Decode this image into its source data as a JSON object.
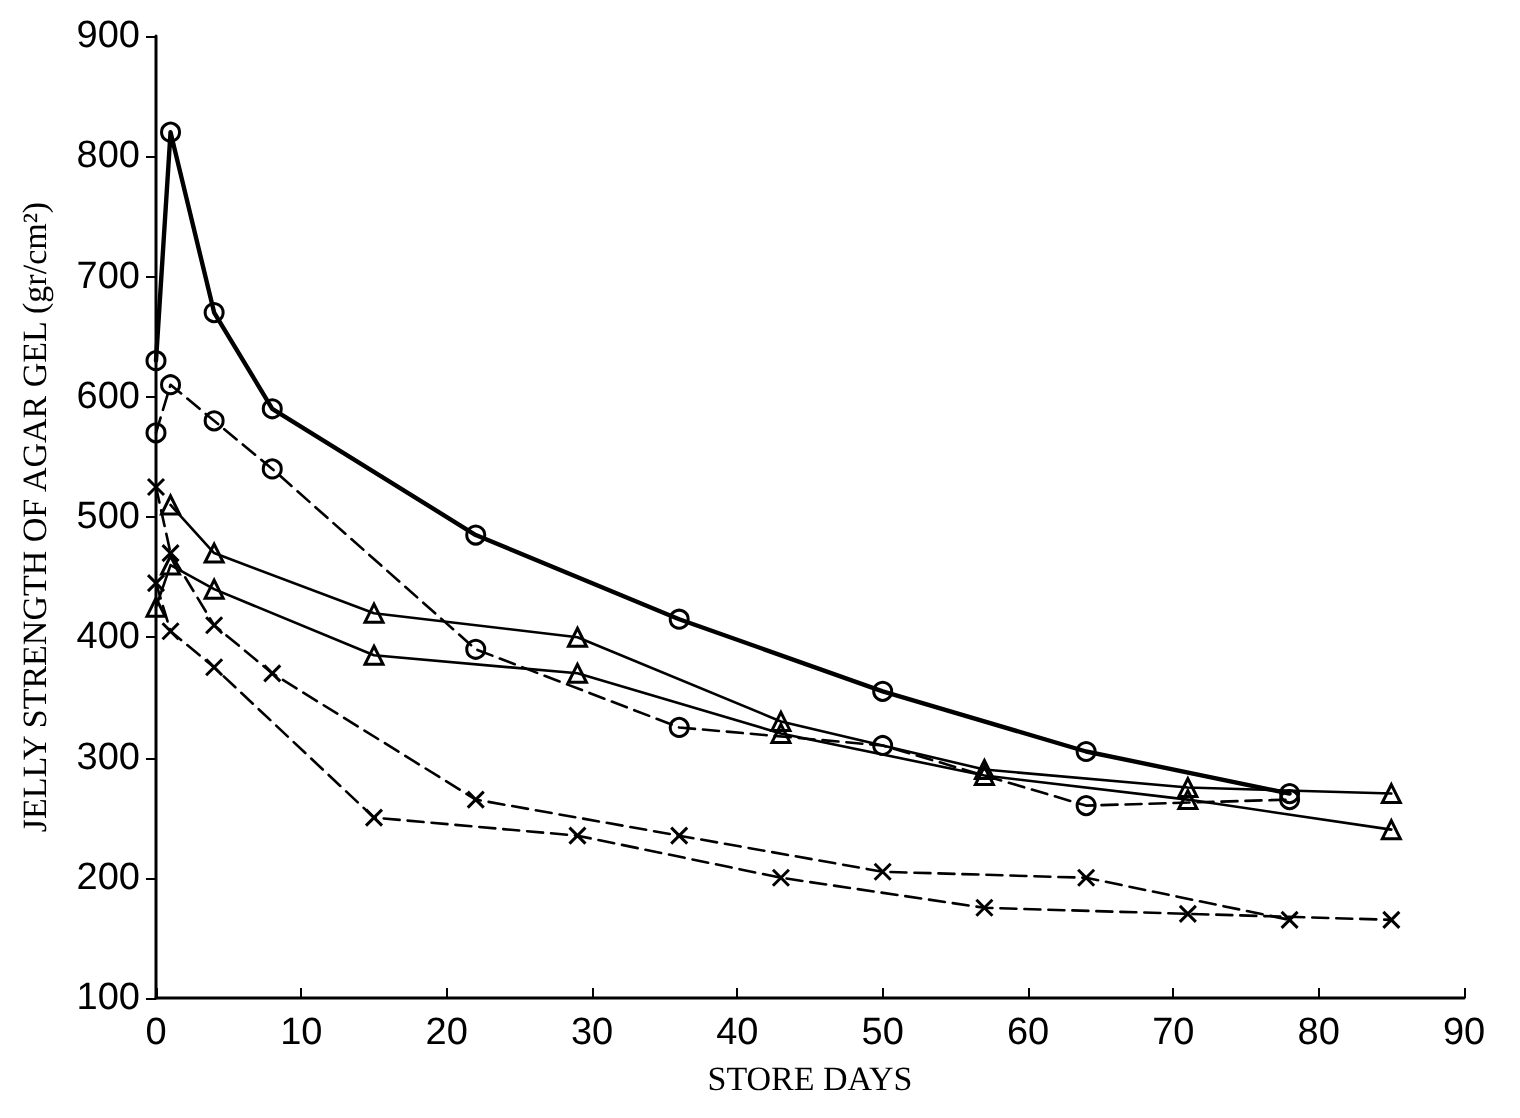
{
  "chart_data": {
    "type": "line",
    "xlabel": "STORE DAYS",
    "ylabel": "JELLY STRENGTH OF AGAR GEL (gr/cm²)",
    "xlim": [
      0,
      90
    ],
    "xticks": [
      0,
      10,
      20,
      30,
      40,
      50,
      60,
      70,
      80,
      90
    ],
    "ylim": [
      100,
      900
    ],
    "yticks": [
      100,
      200,
      300,
      400,
      500,
      600,
      700,
      800,
      900
    ],
    "grid": false,
    "series": [
      {
        "color": "#000000",
        "marker": "circle",
        "line_style": "solid",
        "x": [
          0,
          1,
          4,
          8,
          22,
          36,
          50,
          64,
          78
        ],
        "values": [
          630,
          820,
          670,
          590,
          485,
          415,
          355,
          305,
          270
        ]
      },
      {
        "color": "#000000",
        "marker": "circle",
        "line_style": "dashed",
        "x": [
          0,
          1,
          4,
          8,
          22,
          36,
          50,
          64,
          78
        ],
        "values": [
          570,
          610,
          580,
          540,
          390,
          325,
          310,
          260,
          265
        ]
      },
      {
        "color": "#000000",
        "marker": "triangle",
        "line_style": "solid",
        "x": [
          1,
          4,
          15,
          29,
          43,
          57,
          71,
          85
        ],
        "values": [
          510,
          470,
          420,
          400,
          330,
          290,
          275,
          270
        ]
      },
      {
        "color": "#000000",
        "marker": "triangle",
        "line_style": "solid",
        "x": [
          0,
          1,
          4,
          15,
          29,
          43,
          57,
          71,
          85
        ],
        "values": [
          425,
          460,
          440,
          385,
          370,
          320,
          285,
          265,
          240
        ]
      },
      {
        "color": "#000000",
        "marker": "cross",
        "line_style": "dashed",
        "x": [
          0,
          1,
          4,
          8,
          22,
          36,
          50,
          64,
          78
        ],
        "values": [
          525,
          470,
          410,
          370,
          265,
          235,
          205,
          200,
          165
        ]
      },
      {
        "color": "#000000",
        "marker": "cross",
        "line_style": "dashed",
        "x": [
          0,
          1,
          4,
          15,
          29,
          43,
          57,
          71,
          85
        ],
        "values": [
          445,
          405,
          375,
          250,
          235,
          200,
          175,
          170,
          165
        ]
      }
    ]
  }
}
